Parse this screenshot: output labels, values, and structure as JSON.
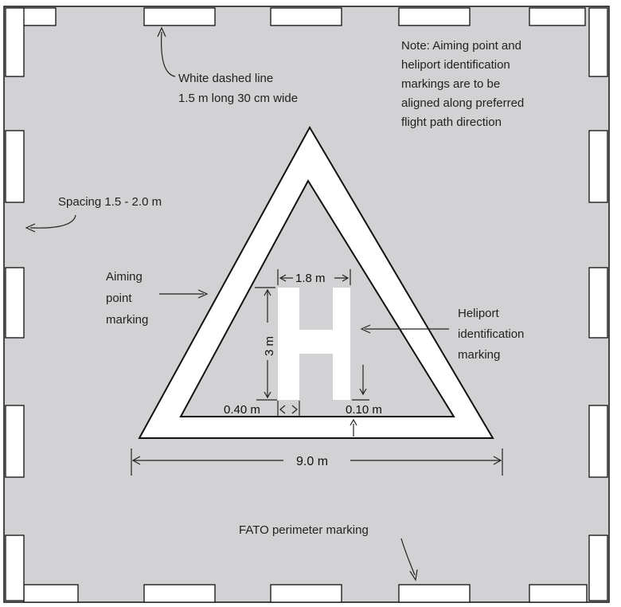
{
  "labels": {
    "dashed_line_1": "White dashed line",
    "dashed_line_2": "1.5 m long 30 cm wide",
    "note_1": "Note: Aiming point and",
    "note_2": "heliport identification",
    "note_3": "markings are to be",
    "note_4": "aligned along preferred",
    "note_5": "flight path direction",
    "spacing": "Spacing 1.5 - 2.0 m",
    "aiming_1": "Aiming",
    "aiming_2": "point",
    "aiming_3": "marking",
    "heliport_1": "Heliport",
    "heliport_2": "identification",
    "heliport_3": "marking",
    "fato": "FATO perimeter marking"
  },
  "dimensions": {
    "h_width": "1.8 m",
    "h_height": "3 m",
    "stroke_width": "0.40 m",
    "clearance": "0.10 m",
    "base": "9.0 m"
  },
  "glyph": {
    "h_letter": "H"
  },
  "colors": {
    "fato_area": "#d2d2d5",
    "marking": "#ffffff",
    "outline": "#111111"
  }
}
